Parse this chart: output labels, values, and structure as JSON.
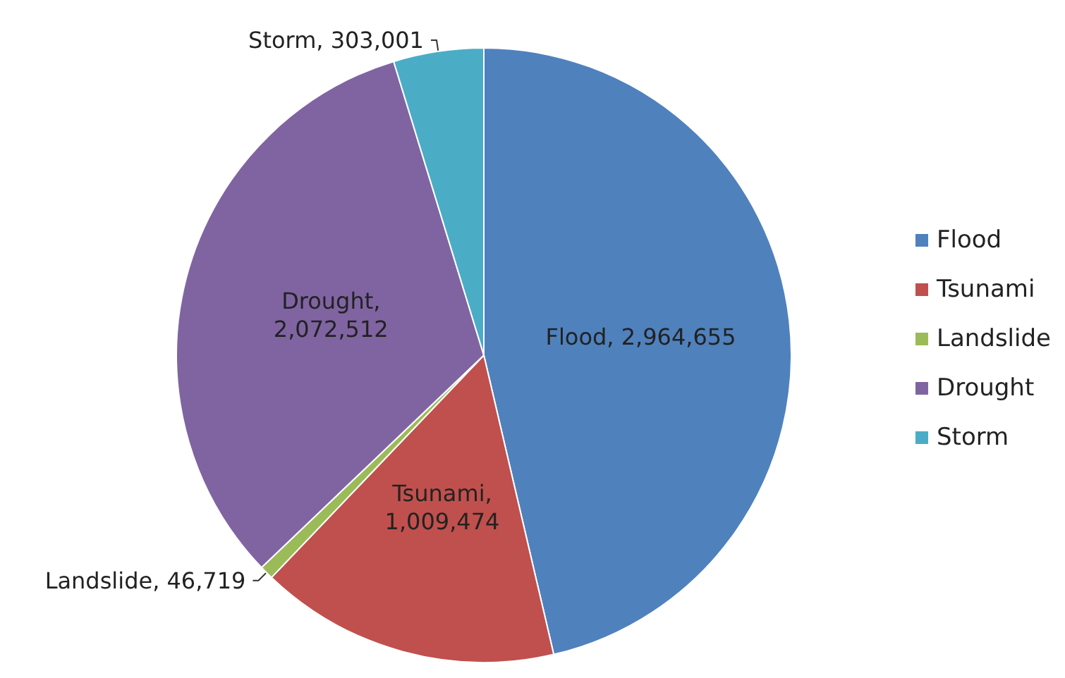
{
  "chart_data": {
    "type": "pie",
    "categories": [
      "Flood",
      "Tsunami",
      "Landslide",
      "Drought",
      "Storm"
    ],
    "values": [
      2964655,
      1009474,
      46719,
      2072512,
      303001
    ],
    "colors": [
      "#4f81bd",
      "#c0504d",
      "#9bbb59",
      "#8064a2",
      "#4bacc6"
    ],
    "value_labels": [
      "Flood, 2,964,655",
      "Tsunami, 1,009,474",
      "Landslide, 46,719",
      "Drought, 2,072,512",
      "Storm, 303,001"
    ],
    "legend": "right"
  }
}
